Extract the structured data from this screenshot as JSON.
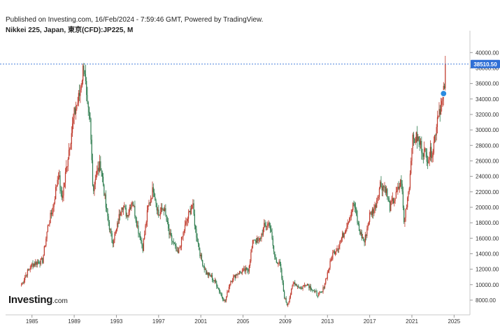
{
  "header": {
    "published": "Published on Investing.com, 16/Feb/2024 - 7:59:46 GMT, Powered by TradingView.",
    "instrument": "Nikkei 225, Japan, 東京(CFD):JP225, M"
  },
  "logo": {
    "brand": "Investing",
    "tld": ".com"
  },
  "colors": {
    "up": "#c0392b",
    "down": "#2e7d4f",
    "priceLine": "#2f6fd6",
    "marker": "#2a8be0"
  },
  "chart_data": {
    "type": "candlestick-ohlc",
    "title": "",
    "xlabel": "",
    "ylabel": "",
    "xlim": [
      1982.5,
      2026.5
    ],
    "ylim": [
      7000,
      41200
    ],
    "x_ticks": [
      "1985",
      "1989",
      "1993",
      "1997",
      "2001",
      "2005",
      "2009",
      "2013",
      "2017",
      "2021",
      "2025"
    ],
    "y_ticks": [
      "8000.00",
      "10000.00",
      "12000.00",
      "14000.00",
      "16000.00",
      "18000.00",
      "20000.00",
      "22000.00",
      "24000.00",
      "26000.00",
      "28000.00",
      "30000.00",
      "32000.00",
      "34000.00",
      "36000.00",
      "38000.00",
      "40000.00"
    ],
    "last_price": "38510.50",
    "last_price_value": 38510.5,
    "marker_point": {
      "x": 2024.0,
      "y": 34700
    },
    "series": [
      {
        "values": [
          [
            1984.0,
            10000
          ],
          [
            1984.5,
            11500
          ],
          [
            1985.0,
            12600
          ],
          [
            1985.5,
            12900
          ],
          [
            1986.0,
            13100
          ],
          [
            1986.5,
            17500
          ],
          [
            1987.0,
            20000
          ],
          [
            1987.5,
            24500
          ],
          [
            1987.8,
            21000
          ],
          [
            1988.0,
            22500
          ],
          [
            1988.5,
            27500
          ],
          [
            1989.0,
            32000
          ],
          [
            1989.5,
            34500
          ],
          [
            1989.95,
            38900
          ],
          [
            1990.2,
            33000
          ],
          [
            1990.5,
            31000
          ],
          [
            1990.8,
            22000
          ],
          [
            1991.0,
            24000
          ],
          [
            1991.5,
            25500
          ],
          [
            1991.8,
            22500
          ],
          [
            1992.0,
            20000
          ],
          [
            1992.4,
            17000
          ],
          [
            1992.6,
            15500
          ],
          [
            1993.0,
            17000
          ],
          [
            1993.5,
            20500
          ],
          [
            1994.0,
            19000
          ],
          [
            1994.5,
            21000
          ],
          [
            1995.0,
            17500
          ],
          [
            1995.5,
            14800
          ],
          [
            1996.0,
            20000
          ],
          [
            1996.5,
            22500
          ],
          [
            1997.0,
            19000
          ],
          [
            1997.5,
            20000
          ],
          [
            1998.0,
            16500
          ],
          [
            1998.5,
            15000
          ],
          [
            1998.8,
            13800
          ],
          [
            1999.5,
            17500
          ],
          [
            2000.2,
            20500
          ],
          [
            2000.5,
            17000
          ],
          [
            2001.0,
            13500
          ],
          [
            2001.5,
            11500
          ],
          [
            2002.0,
            11000
          ],
          [
            2002.5,
            10000
          ],
          [
            2003.0,
            8500
          ],
          [
            2003.3,
            7800
          ],
          [
            2003.8,
            10500
          ],
          [
            2004.5,
            11500
          ],
          [
            2005.0,
            11700
          ],
          [
            2005.5,
            12000
          ],
          [
            2006.0,
            16000
          ],
          [
            2006.5,
            15500
          ],
          [
            2007.0,
            17500
          ],
          [
            2007.5,
            18000
          ],
          [
            2008.0,
            13500
          ],
          [
            2008.5,
            12500
          ],
          [
            2008.9,
            8500
          ],
          [
            2009.2,
            7300
          ],
          [
            2009.8,
            10300
          ],
          [
            2010.5,
            9500
          ],
          [
            2011.0,
            10200
          ],
          [
            2011.5,
            9500
          ],
          [
            2012.0,
            8700
          ],
          [
            2012.5,
            9000
          ],
          [
            2013.0,
            11500
          ],
          [
            2013.5,
            14000
          ],
          [
            2014.0,
            15000
          ],
          [
            2014.5,
            16500
          ],
          [
            2015.0,
            18500
          ],
          [
            2015.5,
            20500
          ],
          [
            2016.0,
            17000
          ],
          [
            2016.5,
            15500
          ],
          [
            2017.0,
            19000
          ],
          [
            2017.5,
            20000
          ],
          [
            2018.0,
            23000
          ],
          [
            2018.5,
            22500
          ],
          [
            2018.9,
            20000
          ],
          [
            2019.5,
            21500
          ],
          [
            2020.0,
            23500
          ],
          [
            2020.25,
            18000
          ],
          [
            2020.8,
            23500
          ],
          [
            2021.0,
            28500
          ],
          [
            2021.5,
            29000
          ],
          [
            2022.0,
            27500
          ],
          [
            2022.5,
            26500
          ],
          [
            2023.0,
            27500
          ],
          [
            2023.5,
            32500
          ],
          [
            2023.9,
            33500
          ],
          [
            2024.1,
            36000
          ],
          [
            2024.2,
            38500
          ]
        ]
      }
    ]
  }
}
